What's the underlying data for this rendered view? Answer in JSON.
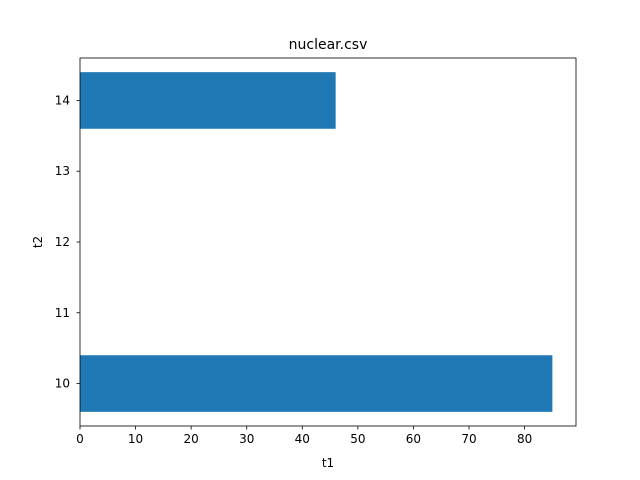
{
  "chart_data": {
    "type": "bar",
    "orientation": "horizontal",
    "title": "nuclear.csv",
    "xlabel": "t1",
    "ylabel": "t2",
    "bars": [
      {
        "y": 10,
        "value": 85
      },
      {
        "y": 14,
        "value": 46
      }
    ],
    "bar_height": 0.8,
    "xlim": [
      0,
      89.25
    ],
    "ylim": [
      9.4,
      14.6
    ],
    "xticks": [
      0,
      10,
      20,
      30,
      40,
      50,
      60,
      70,
      80
    ],
    "yticks": [
      10,
      11,
      12,
      13,
      14
    ],
    "grid": false,
    "bar_color": "#1f77b4"
  }
}
